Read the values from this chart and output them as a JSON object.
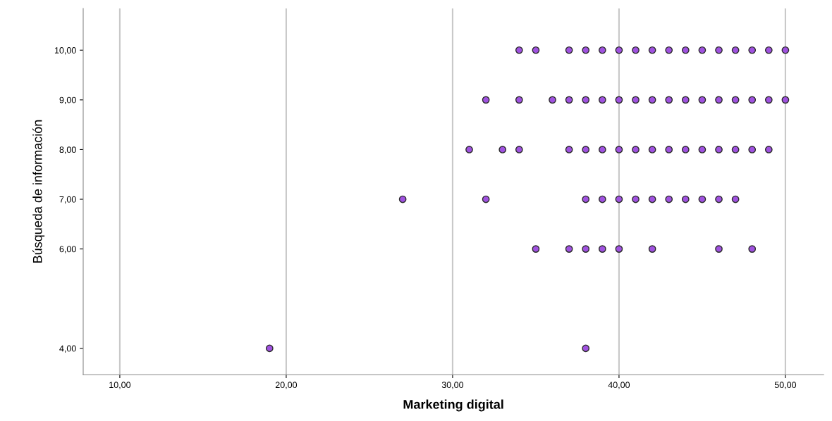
{
  "chart_data": {
    "type": "scatter",
    "xlabel": "Marketing digital",
    "ylabel": "Búsqueda de información",
    "series": [
      {
        "color": "#a052e0",
        "x": [
          34,
          35,
          37,
          38,
          39,
          40,
          41,
          42,
          43,
          44,
          45,
          46,
          47,
          48,
          49,
          50,
          32,
          34,
          36,
          37,
          38,
          39,
          40,
          41,
          42,
          43,
          44,
          45,
          46,
          47,
          48,
          49,
          50,
          31,
          33,
          34,
          37,
          38,
          39,
          40,
          41,
          42,
          43,
          44,
          45,
          46,
          47,
          48,
          49,
          27,
          32,
          38,
          39,
          40,
          41,
          42,
          43,
          44,
          45,
          46,
          47,
          35,
          37,
          38,
          39,
          40,
          42,
          46,
          48,
          19,
          38
        ],
        "values": [
          10,
          10,
          10,
          10,
          10,
          10,
          10,
          10,
          10,
          10,
          10,
          10,
          10,
          10,
          10,
          10,
          9,
          9,
          9,
          9,
          9,
          9,
          9,
          9,
          9,
          9,
          9,
          9,
          9,
          9,
          9,
          9,
          9,
          8,
          8,
          8,
          8,
          8,
          8,
          8,
          8,
          8,
          8,
          8,
          8,
          8,
          8,
          8,
          8,
          7,
          7,
          7,
          7,
          7,
          7,
          7,
          7,
          7,
          7,
          7,
          7,
          6,
          6,
          6,
          6,
          6,
          6,
          6,
          6,
          4,
          4
        ]
      }
    ],
    "marker": "circle",
    "grid": "x",
    "xlim": [
      7.8,
      52.3
    ],
    "ylim": [
      3.47,
      10.84
    ],
    "xticks": [
      {
        "value": 10,
        "label": "10,00"
      },
      {
        "value": 20,
        "label": "20,00"
      },
      {
        "value": 30,
        "label": "30,00"
      },
      {
        "value": 40,
        "label": "40,00"
      },
      {
        "value": 50,
        "label": "50,00"
      }
    ],
    "yticks": [
      {
        "value": 4,
        "label": "4,00"
      },
      {
        "value": 6,
        "label": "6,00"
      },
      {
        "value": 7,
        "label": "7,00"
      },
      {
        "value": 8,
        "label": "8,00"
      },
      {
        "value": 9,
        "label": "9,00"
      },
      {
        "value": 10,
        "label": "10,00"
      }
    ]
  }
}
